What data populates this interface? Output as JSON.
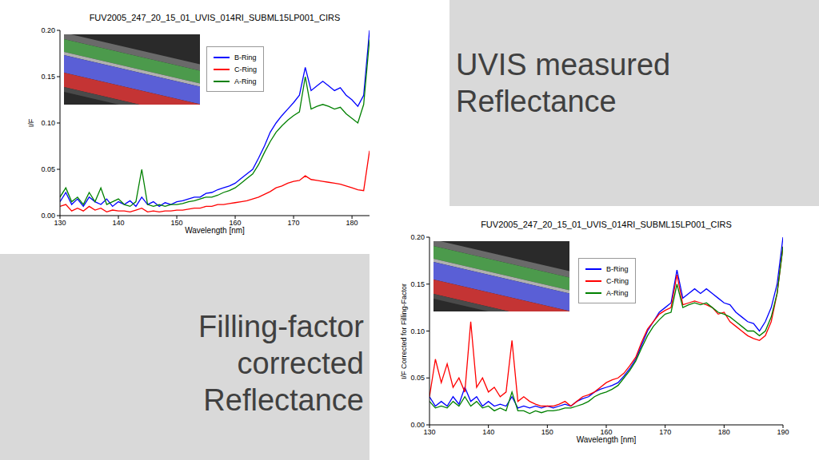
{
  "captions": [
    "UVIS measured Reflectance",
    "Filling-factor corrected Reflectance"
  ],
  "chart_data": [
    {
      "type": "line",
      "title": "FUV2005_247_20_15_01_UVIS_014RI_SUBML15LP001_CIRS",
      "x_label": "Wavelength [nm]",
      "y_label": "I/F",
      "legend": "upper center",
      "xlim": [
        130,
        183
      ],
      "xticks": [
        130,
        140,
        150,
        160,
        170,
        180
      ],
      "ylim": [
        0,
        0.2
      ],
      "yticks": [
        {
          "value": 0,
          "label": "0.00"
        },
        {
          "value": 0.05,
          "label": "0.05"
        },
        {
          "value": 0.1,
          "label": "0.10"
        },
        {
          "value": 0.15,
          "label": "0.15"
        },
        {
          "value": 0.2,
          "label": "0.20"
        }
      ],
      "x": [
        130,
        131,
        132,
        133,
        134,
        135,
        136,
        137,
        138,
        139,
        140,
        141,
        142,
        143,
        144,
        145,
        146,
        147,
        148,
        149,
        150,
        151,
        152,
        153,
        154,
        155,
        156,
        157,
        158,
        159,
        160,
        161,
        162,
        163,
        164,
        165,
        166,
        167,
        168,
        169,
        170,
        171,
        172,
        173,
        174,
        175,
        176,
        177,
        178,
        179,
        180,
        181,
        182,
        183
      ],
      "series": [
        {
          "name": "B-Ring",
          "color": "#0000ff",
          "values": [
            0.015,
            0.025,
            0.012,
            0.018,
            0.01,
            0.02,
            0.015,
            0.012,
            0.018,
            0.01,
            0.015,
            0.012,
            0.016,
            0.01,
            0.02,
            0.012,
            0.015,
            0.01,
            0.014,
            0.012,
            0.015,
            0.016,
            0.018,
            0.02,
            0.02,
            0.024,
            0.025,
            0.028,
            0.03,
            0.032,
            0.035,
            0.04,
            0.045,
            0.05,
            0.062,
            0.075,
            0.09,
            0.1,
            0.108,
            0.115,
            0.122,
            0.13,
            0.16,
            0.135,
            0.14,
            0.145,
            0.14,
            0.135,
            0.138,
            0.13,
            0.125,
            0.118,
            0.13,
            0.2
          ]
        },
        {
          "name": "C-Ring",
          "color": "#ff0000",
          "values": [
            0.01,
            0.012,
            0.005,
            0.008,
            0.005,
            0.01,
            0.006,
            0.008,
            0.004,
            0.006,
            0.005,
            0.005,
            0.004,
            0.006,
            0.008,
            0.004,
            0.005,
            0.004,
            0.005,
            0.005,
            0.006,
            0.006,
            0.007,
            0.008,
            0.008,
            0.01,
            0.01,
            0.012,
            0.012,
            0.013,
            0.014,
            0.015,
            0.016,
            0.018,
            0.02,
            0.023,
            0.026,
            0.03,
            0.032,
            0.035,
            0.037,
            0.038,
            0.043,
            0.039,
            0.038,
            0.037,
            0.036,
            0.035,
            0.034,
            0.032,
            0.03,
            0.028,
            0.027,
            0.07
          ]
        },
        {
          "name": "A-Ring",
          "color": "#008000",
          "values": [
            0.02,
            0.03,
            0.015,
            0.02,
            0.012,
            0.025,
            0.015,
            0.03,
            0.012,
            0.015,
            0.018,
            0.012,
            0.01,
            0.015,
            0.05,
            0.012,
            0.01,
            0.012,
            0.01,
            0.012,
            0.012,
            0.013,
            0.015,
            0.016,
            0.018,
            0.02,
            0.02,
            0.022,
            0.025,
            0.027,
            0.03,
            0.035,
            0.04,
            0.045,
            0.055,
            0.068,
            0.08,
            0.09,
            0.097,
            0.103,
            0.108,
            0.112,
            0.15,
            0.115,
            0.118,
            0.12,
            0.118,
            0.115,
            0.117,
            0.11,
            0.105,
            0.1,
            0.12,
            0.19
          ]
        }
      ]
    },
    {
      "type": "line",
      "title": "FUV2005_247_20_15_01_UVIS_014RI_SUBML15LP001_CIRS",
      "x_label": "Wavelength [nm]",
      "y_label": "I/F Corrected for Filling-Factor",
      "legend": "upper center",
      "xlim": [
        130,
        190
      ],
      "xticks": [
        130,
        140,
        150,
        160,
        170,
        180,
        190
      ],
      "ylim": [
        0,
        0.2
      ],
      "yticks": [
        {
          "value": 0,
          "label": "0.00"
        },
        {
          "value": 0.05,
          "label": "0.05"
        },
        {
          "value": 0.1,
          "label": "0.10"
        },
        {
          "value": 0.15,
          "label": "0.15"
        },
        {
          "value": 0.2,
          "label": "0.20"
        }
      ],
      "x": [
        130,
        131,
        132,
        133,
        134,
        135,
        136,
        137,
        138,
        139,
        140,
        141,
        142,
        143,
        144,
        145,
        146,
        147,
        148,
        149,
        150,
        151,
        152,
        153,
        154,
        155,
        156,
        157,
        158,
        159,
        160,
        161,
        162,
        163,
        164,
        165,
        166,
        167,
        168,
        169,
        170,
        171,
        172,
        173,
        174,
        175,
        176,
        177,
        178,
        179,
        180,
        181,
        182,
        183,
        184,
        185,
        186,
        187,
        188,
        189,
        190
      ],
      "series": [
        {
          "name": "B-Ring",
          "color": "#0000ff",
          "values": [
            0.03,
            0.02,
            0.025,
            0.02,
            0.03,
            0.022,
            0.04,
            0.025,
            0.03,
            0.02,
            0.025,
            0.02,
            0.022,
            0.02,
            0.03,
            0.018,
            0.02,
            0.018,
            0.02,
            0.018,
            0.02,
            0.018,
            0.02,
            0.022,
            0.02,
            0.025,
            0.028,
            0.03,
            0.035,
            0.038,
            0.04,
            0.042,
            0.045,
            0.052,
            0.06,
            0.07,
            0.085,
            0.1,
            0.11,
            0.12,
            0.125,
            0.13,
            0.165,
            0.135,
            0.14,
            0.145,
            0.14,
            0.145,
            0.14,
            0.135,
            0.13,
            0.128,
            0.12,
            0.115,
            0.11,
            0.108,
            0.1,
            0.11,
            0.125,
            0.15,
            0.2
          ]
        },
        {
          "name": "C-Ring",
          "color": "#ff0000",
          "values": [
            0.03,
            0.07,
            0.045,
            0.065,
            0.04,
            0.05,
            0.035,
            0.11,
            0.04,
            0.05,
            0.035,
            0.04,
            0.03,
            0.035,
            0.09,
            0.025,
            0.03,
            0.025,
            0.022,
            0.02,
            0.02,
            0.02,
            0.022,
            0.025,
            0.02,
            0.025,
            0.03,
            0.032,
            0.035,
            0.04,
            0.045,
            0.048,
            0.05,
            0.055,
            0.063,
            0.072,
            0.088,
            0.102,
            0.11,
            0.118,
            0.122,
            0.125,
            0.16,
            0.128,
            0.13,
            0.132,
            0.13,
            0.128,
            0.125,
            0.118,
            0.12,
            0.11,
            0.105,
            0.1,
            0.095,
            0.092,
            0.09,
            0.095,
            0.11,
            0.14,
            0.19
          ]
        },
        {
          "name": "A-Ring",
          "color": "#008000",
          "values": [
            0.025,
            0.018,
            0.02,
            0.018,
            0.025,
            0.02,
            0.03,
            0.02,
            0.025,
            0.018,
            0.02,
            0.015,
            0.018,
            0.015,
            0.035,
            0.015,
            0.015,
            0.012,
            0.015,
            0.013,
            0.015,
            0.015,
            0.016,
            0.018,
            0.018,
            0.02,
            0.022,
            0.025,
            0.03,
            0.033,
            0.035,
            0.038,
            0.042,
            0.05,
            0.058,
            0.068,
            0.082,
            0.095,
            0.105,
            0.112,
            0.118,
            0.12,
            0.15,
            0.125,
            0.128,
            0.13,
            0.128,
            0.13,
            0.125,
            0.12,
            0.118,
            0.115,
            0.11,
            0.105,
            0.1,
            0.1,
            0.095,
            0.1,
            0.115,
            0.14,
            0.19
          ]
        }
      ]
    }
  ]
}
